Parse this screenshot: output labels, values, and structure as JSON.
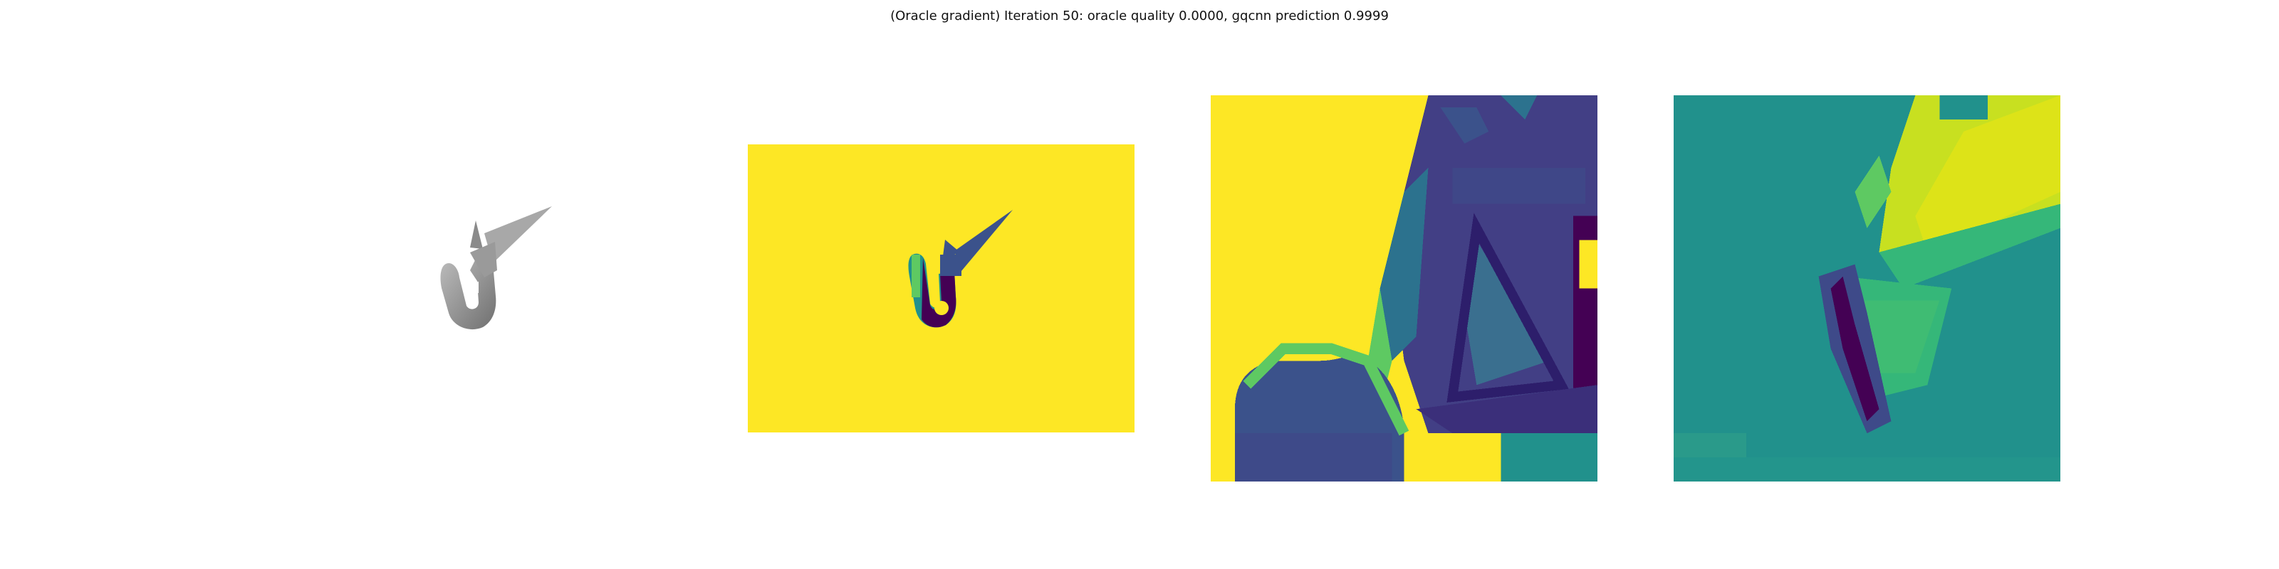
{
  "figure": {
    "title": "(Oracle gradient) Iteration 50: oracle quality 0.0000, gqcnn prediction 0.9999"
  },
  "colors": {
    "viridis_yellow": "#fde725",
    "viridis_purple": "#440154",
    "viridis_indigo": "#3b528b",
    "viridis_teal": "#21918c",
    "viridis_green": "#5ec962",
    "render_gray": "#8c8c8c"
  }
}
